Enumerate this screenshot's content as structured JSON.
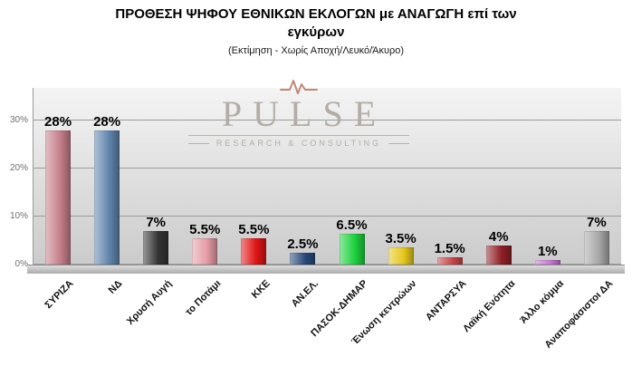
{
  "header": {
    "title_line1": "ΠΡΟΘΕΣΗ ΨΗΦΟΥ ΕΘΝΙΚΩΝ ΕΚΛΟΓΩΝ με ΑΝΑΓΩΓΗ επί των",
    "title_line2": "εγκύρων",
    "subtitle": "(Εκτίμηση  -  Χωρίς Αποχή/Λευκό/Άκυρο)"
  },
  "watermark": {
    "brand": "PULSE",
    "tagline": "RESEARCH  &  CONSULTING"
  },
  "chart_data": {
    "type": "bar",
    "title": "ΠΡΟΘΕΣΗ ΨΗΦΟΥ ΕΘΝΙΚΩΝ ΕΚΛΟΓΩΝ με ΑΝΑΓΩΓΗ επί των εγκύρων",
    "subtitle": "(Εκτίμηση - Χωρίς Αποχή/Λευκό/Άκυρο)",
    "categories": [
      "ΣΥΡΙΖΑ",
      "ΝΔ",
      "Χρυσή Αυγή",
      "το Ποτάμι",
      "ΚΚΕ",
      "ΑΝ.ΕΛ.",
      "ΠΑΣΟΚ-ΔΗΜΑΡ",
      "Ένωση κεντρώων",
      "ΑΝΤΑΡΣΥΑ",
      "Λαϊκή Ενότητα",
      "Άλλο κόμμα",
      "Αναποφάσιστοι ΔΑ"
    ],
    "values": [
      28,
      28,
      7,
      5.5,
      5.5,
      2.5,
      6.5,
      3.5,
      1.5,
      4,
      1,
      7
    ],
    "value_labels": [
      "28%",
      "28%",
      "7%",
      "5.5%",
      "5.5%",
      "2.5%",
      "6.5%",
      "3.5%",
      "1.5%",
      "4%",
      "1%",
      "7%"
    ],
    "bar_colors": [
      "#c47e8a",
      "#5f84ab",
      "#333333",
      "#e59aa4",
      "#e01414",
      "#27497a",
      "#1dd13d",
      "#e4c71c",
      "#c84646",
      "#8f2026",
      "#c976d6",
      "#a6a6a6"
    ],
    "xlabel": "",
    "ylabel": "",
    "ylim": [
      0,
      30
    ],
    "ytick_values": [
      0,
      10,
      20,
      30
    ],
    "ytick_labels": [
      "0%",
      "10%",
      "20%",
      "30%"
    ],
    "grid": true,
    "legend": "none"
  }
}
